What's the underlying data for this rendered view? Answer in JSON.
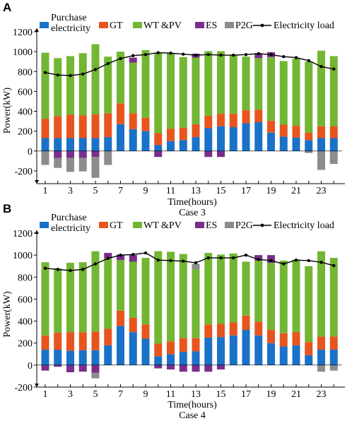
{
  "legend": {
    "purchase": "Purchase\nelectricity",
    "gt": "GT",
    "wtpv": "WT &PV",
    "es": "ES",
    "p2g": "P2G",
    "load": "Electricity load"
  },
  "colors": {
    "purchase": "#1a72c8",
    "gt": "#e8541e",
    "wtpv": "#72b633",
    "es": "#7a2d8c",
    "p2g": "#8c8c8c",
    "load": "#000000"
  },
  "chart_data": [
    {
      "type": "bar",
      "panel": "A",
      "stacked": true,
      "title": "",
      "caption": "Case 3",
      "xlabel": "Time(hours)",
      "ylabel": "Power(kW)",
      "x": [
        1,
        2,
        3,
        4,
        5,
        6,
        7,
        8,
        9,
        10,
        11,
        12,
        13,
        14,
        15,
        16,
        17,
        18,
        19,
        20,
        21,
        22,
        23,
        24
      ],
      "xticks": [
        1,
        3,
        5,
        7,
        9,
        11,
        13,
        15,
        17,
        19,
        21,
        23
      ],
      "ylim": [
        -300,
        1200
      ],
      "yticks": [
        -200,
        0,
        200,
        400,
        600,
        800,
        1000,
        1200
      ],
      "series": [
        {
          "key": "purchase",
          "values": [
            130,
            130,
            130,
            130,
            130,
            140,
            270,
            220,
            200,
            60,
            100,
            110,
            140,
            230,
            250,
            240,
            280,
            290,
            185,
            145,
            135,
            110,
            130,
            130
          ]
        },
        {
          "key": "gt",
          "values": [
            195,
            220,
            235,
            230,
            240,
            240,
            210,
            160,
            135,
            120,
            125,
            125,
            130,
            125,
            125,
            135,
            130,
            125,
            120,
            120,
            120,
            75,
            120,
            120
          ]
        },
        {
          "key": "wtpv",
          "values": [
            665,
            585,
            590,
            625,
            705,
            570,
            520,
            510,
            680,
            810,
            755,
            710,
            670,
            650,
            630,
            590,
            540,
            520,
            640,
            640,
            675,
            715,
            760,
            705
          ]
        },
        {
          "key": "es",
          "values": [
            0,
            -70,
            -70,
            -70,
            -60,
            0,
            0,
            50,
            0,
            -60,
            0,
            0,
            40,
            -60,
            -60,
            0,
            0,
            50,
            50,
            0,
            0,
            0,
            0,
            0
          ]
        },
        {
          "key": "p2g",
          "values": [
            -140,
            -100,
            -140,
            -135,
            -210,
            -140,
            0,
            0,
            0,
            0,
            0,
            0,
            0,
            0,
            0,
            0,
            0,
            0,
            0,
            0,
            0,
            -20,
            -190,
            -130
          ]
        }
      ],
      "line": {
        "key": "load",
        "values": [
          790,
          765,
          760,
          775,
          820,
          880,
          930,
          960,
          970,
          990,
          985,
          975,
          965,
          970,
          965,
          965,
          970,
          980,
          970,
          950,
          940,
          910,
          850,
          825
        ]
      }
    },
    {
      "type": "bar",
      "panel": "B",
      "stacked": true,
      "title": "",
      "caption": "Case 4",
      "xlabel": "Time(hours)",
      "ylabel": "Power(kW)",
      "x": [
        1,
        2,
        3,
        4,
        5,
        6,
        7,
        8,
        9,
        10,
        11,
        12,
        13,
        14,
        15,
        16,
        17,
        18,
        19,
        20,
        21,
        22,
        23,
        24
      ],
      "xticks": [
        1,
        3,
        5,
        7,
        9,
        11,
        13,
        15,
        17,
        19,
        21,
        23
      ],
      "ylim": [
        -200,
        1200
      ],
      "yticks": [
        -200,
        0,
        200,
        400,
        600,
        800,
        1000,
        1200
      ],
      "series": [
        {
          "key": "purchase",
          "values": [
            140,
            140,
            130,
            135,
            135,
            180,
            355,
            300,
            240,
            80,
            100,
            120,
            125,
            250,
            255,
            270,
            320,
            270,
            200,
            170,
            180,
            90,
            140,
            140
          ]
        },
        {
          "key": "gt",
          "values": [
            130,
            155,
            170,
            165,
            170,
            150,
            140,
            130,
            130,
            115,
            115,
            125,
            120,
            120,
            120,
            120,
            130,
            125,
            120,
            120,
            120,
            120,
            120,
            120
          ]
        },
        {
          "key": "wtpv",
          "values": [
            665,
            585,
            630,
            635,
            730,
            640,
            460,
            510,
            605,
            840,
            815,
            765,
            625,
            650,
            630,
            625,
            490,
            555,
            610,
            660,
            660,
            690,
            775,
            715
          ]
        },
        {
          "key": "es",
          "values": [
            -50,
            -15,
            -65,
            -60,
            -70,
            50,
            50,
            60,
            0,
            -30,
            -40,
            -60,
            -60,
            -60,
            -40,
            0,
            0,
            50,
            70,
            0,
            0,
            0,
            0,
            0
          ]
        },
        {
          "key": "p2g",
          "values": [
            0,
            0,
            0,
            0,
            -50,
            0,
            0,
            0,
            0,
            0,
            0,
            0,
            50,
            0,
            0,
            0,
            0,
            0,
            0,
            0,
            0,
            0,
            -60,
            -50
          ]
        }
      ],
      "line": {
        "key": "load",
        "values": [
          880,
          870,
          860,
          870,
          920,
          970,
          1000,
          1005,
          1020,
          955,
          950,
          945,
          930,
          975,
          975,
          975,
          1000,
          960,
          950,
          920,
          955,
          950,
          935,
          905
        ]
      }
    }
  ]
}
